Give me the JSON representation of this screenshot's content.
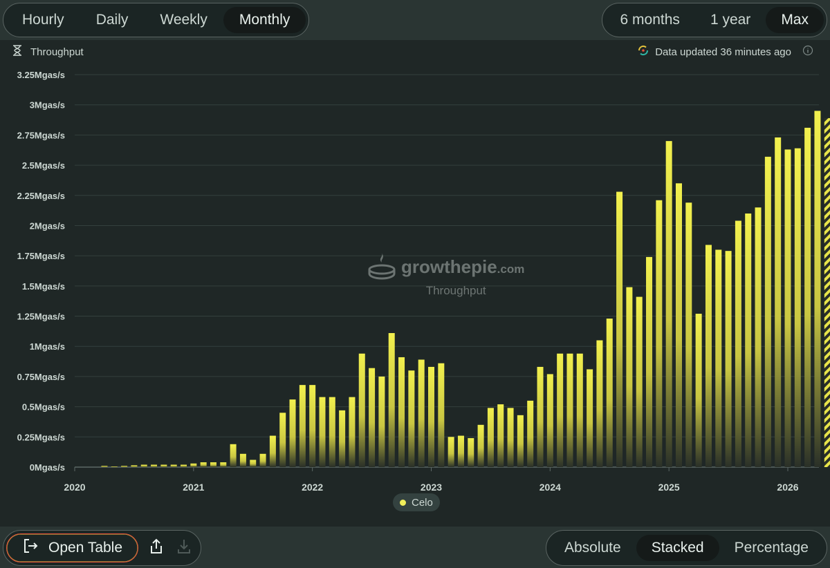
{
  "granularity_tabs": [
    {
      "label": "Hourly",
      "active": false
    },
    {
      "label": "Daily",
      "active": false
    },
    {
      "label": "Weekly",
      "active": false
    },
    {
      "label": "Monthly",
      "active": true
    }
  ],
  "range_tabs": [
    {
      "label": "6 months",
      "active": false
    },
    {
      "label": "1 year",
      "active": false
    },
    {
      "label": "Max",
      "active": true
    }
  ],
  "metric_label": "Throughput",
  "updated_text": "Data updated 36 minutes ago",
  "watermark": {
    "brand": "growthepie",
    "domain": ".com",
    "subtitle": "Throughput"
  },
  "legend": {
    "label": "Celo",
    "color": "#f0ee5a"
  },
  "bottom": {
    "open_table_label": "Open Table"
  },
  "mode_tabs": [
    {
      "label": "Absolute",
      "active": false
    },
    {
      "label": "Stacked",
      "active": true
    },
    {
      "label": "Percentage",
      "active": false
    }
  ],
  "icons": {
    "metric": "hourglass-icon",
    "updated": "sync-icon",
    "info": "info-icon",
    "table": "open-table-icon",
    "share": "share-icon",
    "download": "download-icon"
  },
  "chart_data": {
    "type": "bar",
    "title": "",
    "xlabel": "",
    "ylabel": "",
    "y_unit": "Mgas/s",
    "ylim": [
      0,
      3.25
    ],
    "y_ticks": [
      "0Mgas/s",
      "0.25Mgas/s",
      "0.5Mgas/s",
      "0.75Mgas/s",
      "1Mgas/s",
      "1.25Mgas/s",
      "1.5Mgas/s",
      "1.75Mgas/s",
      "2Mgas/s",
      "2.25Mgas/s",
      "2.5Mgas/s",
      "2.75Mgas/s",
      "3Mgas/s",
      "3.25Mgas/s"
    ],
    "x_ticks": [
      "2020",
      "2021",
      "2022",
      "2023",
      "2024",
      "2025",
      "2026"
    ],
    "start": "2020-04",
    "grid": true,
    "series": [
      {
        "name": "Celo",
        "color": "#f0ee5a",
        "values": [
          0.01,
          0.005,
          0.01,
          0.015,
          0.02,
          0.02,
          0.02,
          0.02,
          0.02,
          0.03,
          0.04,
          0.04,
          0.04,
          0.19,
          0.11,
          0.06,
          0.11,
          0.26,
          0.45,
          0.56,
          0.68,
          0.68,
          0.58,
          0.58,
          0.47,
          0.58,
          0.94,
          0.82,
          0.75,
          1.11,
          0.91,
          0.8,
          0.89,
          0.83,
          0.86,
          0.25,
          0.26,
          0.24,
          0.35,
          0.49,
          0.52,
          0.49,
          0.43,
          0.55,
          0.83,
          0.77,
          0.94,
          0.94,
          0.94,
          0.81,
          1.05,
          1.23,
          2.28,
          1.49,
          1.41,
          1.74,
          2.21,
          2.7,
          2.35,
          2.19,
          1.27,
          1.84,
          1.8,
          1.79,
          2.04,
          2.1,
          2.15,
          2.57,
          2.73,
          2.63,
          2.64,
          2.81,
          2.95,
          2.89
        ]
      }
    ],
    "last_point_partial": true
  }
}
